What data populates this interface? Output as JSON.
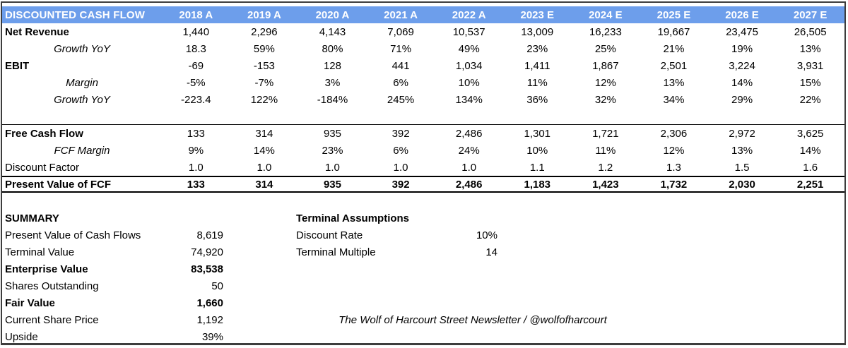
{
  "table": {
    "title": "DISCOUNTED CASH FLOW",
    "columns": [
      "2018 A",
      "2019 A",
      "2020 A",
      "2021 A",
      "2022 A",
      "2023 E",
      "2024 E",
      "2025 E",
      "2026 E",
      "2027 E"
    ],
    "rows": [
      {
        "label": "Net Revenue",
        "label_style": "bold",
        "values": [
          "1,440",
          "2,296",
          "4,143",
          "7,069",
          "10,537",
          "13,009",
          "16,233",
          "19,667",
          "23,475",
          "26,505"
        ]
      },
      {
        "label": "Growth YoY",
        "label_style": "italic",
        "values": [
          "18.3",
          "59%",
          "80%",
          "71%",
          "49%",
          "23%",
          "25%",
          "21%",
          "19%",
          "13%"
        ]
      },
      {
        "label": "EBIT",
        "label_style": "bold",
        "values": [
          "-69",
          "-153",
          "128",
          "441",
          "1,034",
          "1,411",
          "1,867",
          "2,501",
          "3,224",
          "3,931"
        ]
      },
      {
        "label": "Margin",
        "label_style": "italic",
        "values": [
          "-5%",
          "-7%",
          "3%",
          "6%",
          "10%",
          "11%",
          "12%",
          "13%",
          "14%",
          "15%"
        ]
      },
      {
        "label": "Growth YoY",
        "label_style": "italic",
        "values": [
          "-223.4",
          "122%",
          "-184%",
          "245%",
          "134%",
          "36%",
          "32%",
          "34%",
          "29%",
          "22%"
        ]
      },
      {
        "label": "",
        "label_style": "regular",
        "rule_below": true,
        "values": [
          "",
          "",
          "",
          "",
          "",
          "",
          "",
          "",
          "",
          ""
        ]
      },
      {
        "label": "Free Cash Flow",
        "label_style": "bold",
        "values": [
          "133",
          "314",
          "935",
          "392",
          "2,486",
          "1,301",
          "1,721",
          "2,306",
          "2,972",
          "3,625"
        ]
      },
      {
        "label": "FCF Margin",
        "label_style": "italic",
        "values": [
          "9%",
          "14%",
          "23%",
          "6%",
          "24%",
          "10%",
          "11%",
          "12%",
          "13%",
          "14%"
        ]
      },
      {
        "label": "Discount Factor",
        "label_style": "regular",
        "values": [
          "1.0",
          "1.0",
          "1.0",
          "1.0",
          "1.0",
          "1.1",
          "1.2",
          "1.3",
          "1.5",
          "1.6"
        ]
      },
      {
        "label": "Present Value of FCF",
        "label_style": "bold",
        "total": true,
        "values": [
          "133",
          "314",
          "935",
          "392",
          "2,486",
          "1,183",
          "1,423",
          "1,732",
          "2,030",
          "2,251"
        ]
      }
    ]
  },
  "summary": {
    "title": "SUMMARY",
    "rows": [
      {
        "label": "Present Value of Cash Flows",
        "value": "8,619",
        "bold": false
      },
      {
        "label": "Terminal Value",
        "value": "74,920",
        "bold": false
      },
      {
        "label": "Enterprise Value",
        "value": "83,538",
        "bold": true
      },
      {
        "label": "Shares Outstanding",
        "value": "50",
        "bold": false
      },
      {
        "label": "Fair Value",
        "value": "1,660",
        "bold": true
      },
      {
        "label": "Current Share Price",
        "value": "1,192",
        "bold": false
      },
      {
        "label": "Upside",
        "value": "39%",
        "bold": false
      }
    ]
  },
  "terminal_assumptions": {
    "title": "Terminal Assumptions",
    "rows": [
      {
        "label": "Discount Rate",
        "value": "10%"
      },
      {
        "label": "Terminal Multiple",
        "value": "14"
      }
    ]
  },
  "footer": {
    "credit": "The Wolf of Harcourt Street Newsletter / @wolfofharcourt"
  },
  "colors": {
    "header_bg": "#6d9eeb",
    "header_text": "#ffffff",
    "frame_border": "#3d3d3d",
    "rule": "#000000"
  }
}
